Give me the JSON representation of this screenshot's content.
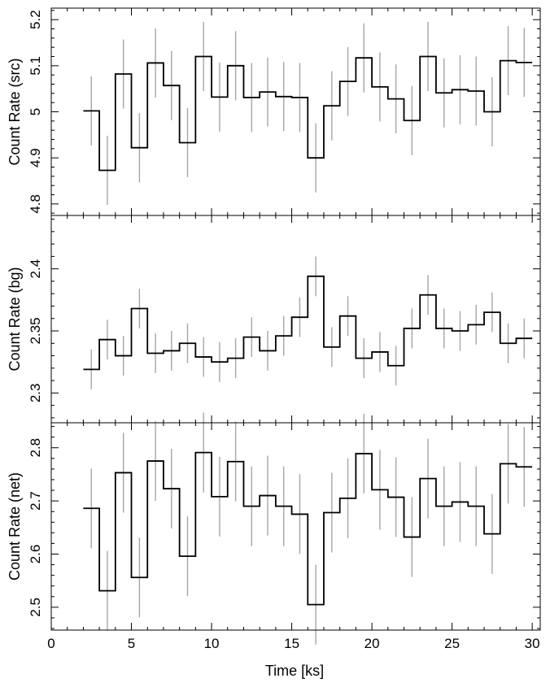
{
  "chart_data": [
    {
      "type": "line",
      "ylabel": "Count Rate (src)",
      "ylim": [
        4.775,
        5.225
      ],
      "yticks": [
        4.8,
        4.9,
        5,
        5.1,
        5.2
      ],
      "ytick_labels": [
        "4.8",
        "4.9",
        "5",
        "5.1",
        "5.2"
      ],
      "x": [
        2.5,
        3.5,
        4.5,
        5.5,
        6.5,
        7.5,
        8.5,
        9.5,
        10.5,
        11.5,
        12.5,
        13.5,
        14.5,
        15.5,
        16.5,
        17.5,
        18.5,
        19.5,
        20.5,
        21.5,
        22.5,
        23.5,
        24.5,
        25.5,
        26.5,
        27.5,
        28.5,
        29.5
      ],
      "series": [
        {
          "values": [
            5.002,
            4.873,
            5.082,
            4.922,
            5.106,
            5.057,
            4.933,
            5.12,
            5.032,
            5.1,
            5.031,
            5.043,
            5.033,
            5.031,
            4.9,
            5.013,
            5.066,
            5.117,
            5.054,
            5.028,
            4.981,
            5.12,
            5.041,
            5.048,
            5.045,
            5.0,
            5.111,
            5.107
          ],
          "errors": [
            0.075,
            0.075,
            0.075,
            0.075,
            0.075,
            0.075,
            0.075,
            0.075,
            0.075,
            0.075,
            0.075,
            0.075,
            0.075,
            0.075,
            0.075,
            0.075,
            0.075,
            0.075,
            0.075,
            0.075,
            0.075,
            0.075,
            0.075,
            0.075,
            0.075,
            0.075,
            0.075,
            0.075
          ]
        }
      ]
    },
    {
      "type": "line",
      "ylabel": "Count Rate (bg)",
      "ylim": [
        2.276,
        2.443
      ],
      "yticks": [
        2.3,
        2.35,
        2.4
      ],
      "ytick_labels": [
        "2.3",
        "2.35",
        "2.4"
      ],
      "x": [
        2.5,
        3.5,
        4.5,
        5.5,
        6.5,
        7.5,
        8.5,
        9.5,
        10.5,
        11.5,
        12.5,
        13.5,
        14.5,
        15.5,
        16.5,
        17.5,
        18.5,
        19.5,
        20.5,
        21.5,
        22.5,
        23.5,
        24.5,
        25.5,
        26.5,
        27.5,
        28.5,
        29.5
      ],
      "series": [
        {
          "values": [
            2.319,
            2.343,
            2.33,
            2.368,
            2.332,
            2.334,
            2.34,
            2.329,
            2.325,
            2.328,
            2.345,
            2.334,
            2.346,
            2.361,
            2.394,
            2.337,
            2.362,
            2.328,
            2.333,
            2.322,
            2.352,
            2.379,
            2.352,
            2.35,
            2.355,
            2.365,
            2.34,
            2.344
          ],
          "errors": [
            0.016,
            0.016,
            0.016,
            0.016,
            0.016,
            0.016,
            0.016,
            0.016,
            0.016,
            0.016,
            0.016,
            0.016,
            0.016,
            0.016,
            0.016,
            0.016,
            0.016,
            0.016,
            0.016,
            0.016,
            0.016,
            0.016,
            0.016,
            0.016,
            0.016,
            0.016,
            0.016,
            0.016
          ]
        }
      ]
    },
    {
      "type": "line",
      "ylabel": "Count Rate (net)",
      "xlabel": "Time [ks]",
      "xlim": [
        0,
        30.5
      ],
      "xticks": [
        0,
        5,
        10,
        15,
        20,
        25,
        30
      ],
      "xtick_labels": [
        "0",
        "5",
        "10",
        "15",
        "20",
        "25",
        "30"
      ],
      "ylim": [
        2.457,
        2.847
      ],
      "yticks": [
        2.5,
        2.6,
        2.7,
        2.8
      ],
      "ytick_labels": [
        "2.5",
        "2.6",
        "2.7",
        "2.8"
      ],
      "x": [
        2.5,
        3.5,
        4.5,
        5.5,
        6.5,
        7.5,
        8.5,
        9.5,
        10.5,
        11.5,
        12.5,
        13.5,
        14.5,
        15.5,
        16.5,
        17.5,
        18.5,
        19.5,
        20.5,
        21.5,
        22.5,
        23.5,
        24.5,
        25.5,
        26.5,
        27.5,
        28.5,
        29.5
      ],
      "series": [
        {
          "values": [
            2.686,
            2.531,
            2.753,
            2.556,
            2.775,
            2.723,
            2.596,
            2.791,
            2.708,
            2.774,
            2.69,
            2.71,
            2.69,
            2.675,
            2.505,
            2.678,
            2.705,
            2.789,
            2.721,
            2.707,
            2.632,
            2.742,
            2.69,
            2.698,
            2.69,
            2.638,
            2.77,
            2.764
          ],
          "errors": [
            0.075,
            0.075,
            0.075,
            0.075,
            0.075,
            0.075,
            0.075,
            0.075,
            0.075,
            0.075,
            0.075,
            0.075,
            0.075,
            0.075,
            0.075,
            0.075,
            0.075,
            0.075,
            0.075,
            0.075,
            0.075,
            0.075,
            0.075,
            0.075,
            0.075,
            0.075,
            0.075,
            0.075
          ]
        }
      ]
    }
  ]
}
